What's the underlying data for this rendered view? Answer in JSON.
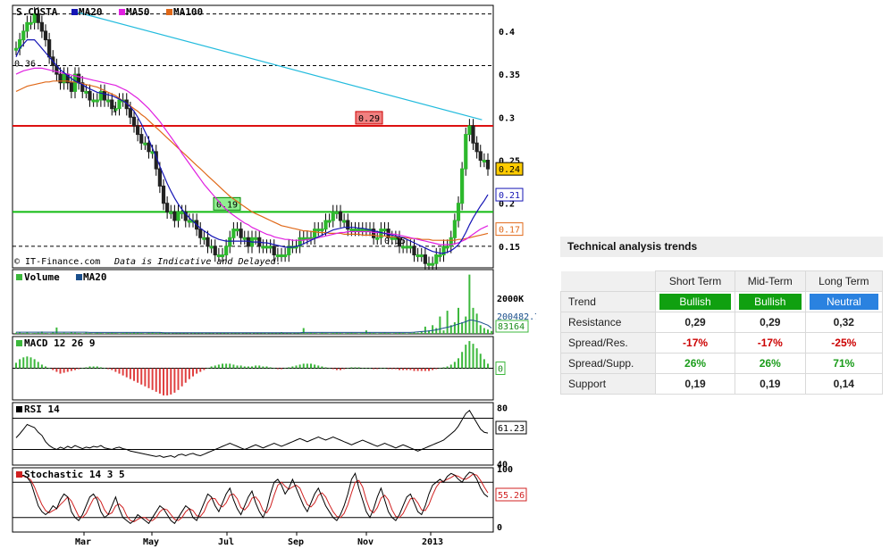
{
  "chart_data": {
    "type": "candlestick",
    "title": "S.COSTA",
    "legend": [
      "MA20",
      "MA50",
      "MA100"
    ],
    "colors": {
      "ma20": "#1515b5",
      "ma50": "#e020e0",
      "ma100": "#e06818",
      "resistance": "#dd1111",
      "support": "#11bb11",
      "trendline": "#22bbdd"
    },
    "copyright": "© IT-Finance.com",
    "disclaimer": "Data is Indicative and Delayed.",
    "y_ticks": [
      "0.4",
      "0.35",
      "0.3",
      "0.25",
      "0.2",
      "0.15"
    ],
    "ylim": [
      0.125,
      0.43
    ],
    "x_ticks": [
      "Mar",
      "May",
      "Jul",
      "Sep",
      "Nov",
      "2013"
    ],
    "price_labels": {
      "resistance": "0.29",
      "support": "0.19",
      "low_marker": "0.15",
      "high_marker": "0.36",
      "mid_marker": "1"
    },
    "right_labels": {
      "last": "0.24",
      "ma20": "0.21",
      "ma100": "0.17"
    },
    "close": [
      0.38,
      0.39,
      0.4,
      0.41,
      0.41,
      0.42,
      0.41,
      0.4,
      0.39,
      0.37,
      0.36,
      0.35,
      0.34,
      0.35,
      0.34,
      0.33,
      0.35,
      0.34,
      0.33,
      0.33,
      0.32,
      0.32,
      0.32,
      0.33,
      0.32,
      0.32,
      0.31,
      0.31,
      0.32,
      0.32,
      0.31,
      0.3,
      0.29,
      0.28,
      0.27,
      0.27,
      0.26,
      0.26,
      0.24,
      0.22,
      0.2,
      0.19,
      0.19,
      0.18,
      0.19,
      0.19,
      0.18,
      0.18,
      0.18,
      0.17,
      0.16,
      0.16,
      0.15,
      0.15,
      0.14,
      0.14,
      0.14,
      0.15,
      0.16,
      0.17,
      0.17,
      0.16,
      0.16,
      0.15,
      0.16,
      0.16,
      0.15,
      0.15,
      0.15,
      0.15,
      0.14,
      0.14,
      0.14,
      0.14,
      0.15,
      0.15,
      0.15,
      0.16,
      0.16,
      0.16,
      0.16,
      0.17,
      0.17,
      0.17,
      0.18,
      0.18,
      0.19,
      0.19,
      0.18,
      0.18,
      0.17,
      0.17,
      0.17,
      0.17,
      0.17,
      0.17,
      0.17,
      0.16,
      0.16,
      0.17,
      0.17,
      0.16,
      0.16,
      0.16,
      0.15,
      0.15,
      0.15,
      0.15,
      0.14,
      0.14,
      0.14,
      0.13,
      0.13,
      0.13,
      0.14,
      0.14,
      0.15,
      0.15,
      0.16,
      0.18,
      0.2,
      0.24,
      0.28,
      0.29,
      0.27,
      0.26,
      0.25,
      0.25,
      0.24
    ],
    "ma20": [
      0.37,
      0.38,
      0.385,
      0.39,
      0.39,
      0.39,
      0.385,
      0.38,
      0.375,
      0.37,
      0.365,
      0.36,
      0.355,
      0.352,
      0.348,
      0.345,
      0.342,
      0.34,
      0.338,
      0.335,
      0.333,
      0.331,
      0.329,
      0.328,
      0.327,
      0.326,
      0.325,
      0.323,
      0.321,
      0.319,
      0.316,
      0.312,
      0.307,
      0.3,
      0.292,
      0.283,
      0.274,
      0.264,
      0.254,
      0.243,
      0.233,
      0.223,
      0.214,
      0.206,
      0.199,
      0.193,
      0.188,
      0.183,
      0.179,
      0.175,
      0.171,
      0.168,
      0.165,
      0.162,
      0.16,
      0.158,
      0.157,
      0.156,
      0.156,
      0.156,
      0.156,
      0.156,
      0.156,
      0.156,
      0.155,
      0.155,
      0.155,
      0.154,
      0.154,
      0.153,
      0.152,
      0.151,
      0.15,
      0.149,
      0.149,
      0.149,
      0.15,
      0.151,
      0.153,
      0.155,
      0.157,
      0.159,
      0.161,
      0.163,
      0.165,
      0.167,
      0.169,
      0.17,
      0.171,
      0.172,
      0.172,
      0.172,
      0.172,
      0.171,
      0.171,
      0.17,
      0.169,
      0.168,
      0.167,
      0.166,
      0.165,
      0.164,
      0.163,
      0.162,
      0.161,
      0.16,
      0.158,
      0.156,
      0.154,
      0.152,
      0.15,
      0.148,
      0.146,
      0.144,
      0.143,
      0.142,
      0.142,
      0.143,
      0.145,
      0.148,
      0.152,
      0.158,
      0.166,
      0.175,
      0.183,
      0.19,
      0.197,
      0.203,
      0.21
    ],
    "ma50": [
      0.35,
      0.352,
      0.354,
      0.355,
      0.356,
      0.357,
      0.357,
      0.357,
      0.356,
      0.355,
      0.354,
      0.353,
      0.352,
      0.351,
      0.35,
      0.349,
      0.348,
      0.347,
      0.346,
      0.345,
      0.344,
      0.343,
      0.342,
      0.341,
      0.34,
      0.339,
      0.338,
      0.337,
      0.335,
      0.333,
      0.331,
      0.328,
      0.325,
      0.322,
      0.318,
      0.314,
      0.31,
      0.305,
      0.3,
      0.295,
      0.289,
      0.283,
      0.277,
      0.271,
      0.265,
      0.258,
      0.252,
      0.246,
      0.24,
      0.234,
      0.228,
      0.222,
      0.217,
      0.212,
      0.207,
      0.202,
      0.197,
      0.193,
      0.189,
      0.186,
      0.183,
      0.18,
      0.177,
      0.175,
      0.172,
      0.17,
      0.168,
      0.166,
      0.164,
      0.163,
      0.161,
      0.16,
      0.159,
      0.158,
      0.158,
      0.157,
      0.157,
      0.157,
      0.157,
      0.158,
      0.158,
      0.159,
      0.16,
      0.161,
      0.162,
      0.163,
      0.164,
      0.165,
      0.166,
      0.166,
      0.167,
      0.167,
      0.167,
      0.167,
      0.167,
      0.167,
      0.167,
      0.166,
      0.166,
      0.166,
      0.165,
      0.165,
      0.164,
      0.164,
      0.163,
      0.162,
      0.161,
      0.16,
      0.159,
      0.158,
      0.157,
      0.156,
      0.155,
      0.154,
      0.153,
      0.152,
      0.152,
      0.152,
      0.152,
      0.153,
      0.154,
      0.156,
      0.158,
      0.161,
      0.164,
      0.167,
      0.17,
      0.172,
      0.174
    ],
    "ma100": [
      0.33,
      0.332,
      0.334,
      0.336,
      0.337,
      0.338,
      0.339,
      0.34,
      0.341,
      0.341,
      0.342,
      0.342,
      0.342,
      0.342,
      0.342,
      0.341,
      0.341,
      0.34,
      0.339,
      0.338,
      0.337,
      0.336,
      0.335,
      0.333,
      0.331,
      0.329,
      0.327,
      0.325,
      0.322,
      0.319,
      0.316,
      0.313,
      0.31,
      0.307,
      0.303,
      0.3,
      0.296,
      0.292,
      0.288,
      0.284,
      0.28,
      0.276,
      0.272,
      0.268,
      0.264,
      0.26,
      0.256,
      0.252,
      0.248,
      0.244,
      0.24,
      0.236,
      0.232,
      0.228,
      0.224,
      0.22,
      0.216,
      0.212,
      0.208,
      0.205,
      0.202,
      0.199,
      0.196,
      0.193,
      0.19,
      0.188,
      0.186,
      0.184,
      0.182,
      0.18,
      0.178,
      0.176,
      0.174,
      0.173,
      0.172,
      0.171,
      0.17,
      0.169,
      0.168,
      0.168,
      0.167,
      0.167,
      0.166,
      0.166,
      0.166,
      0.165,
      0.165,
      0.165,
      0.165,
      0.164,
      0.164,
      0.164,
      0.164,
      0.164,
      0.163,
      0.163,
      0.163,
      0.163,
      0.162,
      0.162,
      0.162,
      0.161,
      0.161,
      0.161,
      0.16,
      0.16,
      0.16,
      0.159,
      0.159,
      0.159,
      0.158,
      0.158,
      0.158,
      0.157,
      0.157,
      0.157,
      0.157,
      0.157,
      0.157,
      0.157,
      0.158,
      0.158,
      0.159,
      0.16,
      0.161,
      0.162,
      0.163,
      0.164,
      0.165
    ],
    "volume": {
      "label": "Volume",
      "ma_label": "MA20",
      "axis_label": "2000K",
      "last_label": "83164",
      "ma_value_label": "200482.7",
      "ylim": [
        0,
        2100
      ],
      "values": [
        40,
        60,
        30,
        50,
        20,
        30,
        40,
        80,
        30,
        20,
        50,
        220,
        30,
        40,
        30,
        60,
        40,
        30,
        20,
        50,
        30,
        20,
        40,
        30,
        20,
        30,
        40,
        30,
        20,
        30,
        40,
        30,
        60,
        40,
        30,
        20,
        40,
        60,
        30,
        40,
        50,
        30,
        20,
        30,
        40,
        30,
        30,
        20,
        30,
        40,
        30,
        20,
        40,
        30,
        20,
        30,
        40,
        30,
        20,
        30,
        30,
        20,
        40,
        30,
        20,
        30,
        40,
        30,
        20,
        30,
        40,
        30,
        60,
        40,
        30,
        20,
        40,
        30,
        200,
        30,
        40,
        30,
        20,
        40,
        30,
        20,
        30,
        40,
        30,
        20,
        30,
        40,
        30,
        20,
        30,
        120,
        40,
        30,
        20,
        30,
        40,
        30,
        20,
        30,
        40,
        30,
        20,
        30,
        60,
        40,
        80,
        250,
        120,
        300,
        200,
        600,
        120,
        800,
        300,
        400,
        900,
        400,
        600,
        2050,
        900,
        700,
        300,
        200,
        150,
        100
      ],
      "ma": [
        60,
        60,
        60,
        60,
        60,
        60,
        60,
        60,
        60,
        60,
        60,
        60,
        60,
        60,
        60,
        60,
        60,
        60,
        60,
        60,
        50,
        50,
        50,
        50,
        50,
        50,
        50,
        50,
        50,
        50,
        50,
        50,
        50,
        50,
        50,
        50,
        50,
        50,
        50,
        50,
        40,
        40,
        40,
        40,
        40,
        40,
        40,
        40,
        40,
        40,
        40,
        40,
        40,
        40,
        40,
        40,
        40,
        40,
        40,
        40,
        40,
        40,
        40,
        40,
        40,
        40,
        40,
        40,
        40,
        40,
        40,
        40,
        40,
        40,
        40,
        40,
        40,
        40,
        50,
        50,
        50,
        50,
        50,
        50,
        50,
        50,
        50,
        50,
        50,
        50,
        50,
        50,
        50,
        50,
        50,
        50,
        50,
        50,
        50,
        50,
        50,
        50,
        50,
        50,
        50,
        50,
        50,
        50,
        60,
        70,
        80,
        90,
        100,
        120,
        140,
        170,
        200,
        230,
        260,
        300,
        340,
        380,
        420,
        480,
        470,
        440,
        400,
        350,
        300,
        200
      ]
    },
    "macd": {
      "label": "MACD 12 26 9",
      "value_label": "0",
      "ylim": [
        -0.035,
        0.035
      ],
      "values": [
        0.006,
        0.01,
        0.012,
        0.013,
        0.012,
        0.01,
        0.007,
        0.004,
        0.002,
        0.0,
        -0.002,
        -0.004,
        -0.006,
        -0.005,
        -0.004,
        -0.003,
        -0.002,
        -0.001,
        0.0,
        0.001,
        0.002,
        0.002,
        0.002,
        0.001,
        0.0,
        -0.001,
        -0.002,
        -0.004,
        -0.006,
        -0.008,
        -0.01,
        -0.012,
        -0.014,
        -0.016,
        -0.018,
        -0.02,
        -0.022,
        -0.024,
        -0.026,
        -0.028,
        -0.03,
        -0.03,
        -0.029,
        -0.027,
        -0.024,
        -0.02,
        -0.016,
        -0.012,
        -0.009,
        -0.006,
        -0.004,
        -0.002,
        0.0,
        0.002,
        0.003,
        0.004,
        0.005,
        0.005,
        0.005,
        0.004,
        0.003,
        0.003,
        0.002,
        0.002,
        0.002,
        0.003,
        0.003,
        0.002,
        0.002,
        0.001,
        0.0,
        -0.001,
        -0.001,
        0.0,
        0.001,
        0.002,
        0.003,
        0.004,
        0.005,
        0.005,
        0.005,
        0.004,
        0.003,
        0.002,
        0.001,
        0.0,
        -0.001,
        -0.002,
        -0.002,
        -0.001,
        0.0,
        0.001,
        0.001,
        0.001,
        0.0,
        0.0,
        0.0,
        -0.001,
        -0.001,
        0.0,
        0.0,
        -0.001,
        -0.001,
        -0.001,
        -0.002,
        -0.002,
        -0.002,
        -0.002,
        -0.003,
        -0.003,
        -0.003,
        -0.003,
        -0.003,
        -0.002,
        -0.001,
        0.0,
        0.001,
        0.002,
        0.004,
        0.007,
        0.011,
        0.018,
        0.026,
        0.03,
        0.027,
        0.022,
        0.016,
        0.01,
        0.005
      ]
    },
    "rsi": {
      "label": "RSI 14",
      "value_label": "61.23",
      "ylim": [
        20,
        100
      ],
      "levels": [
        80,
        40
      ],
      "tick_labels": [
        "80",
        "40"
      ],
      "values": [
        55,
        60,
        66,
        72,
        70,
        68,
        62,
        58,
        50,
        45,
        42,
        40,
        43,
        41,
        44,
        42,
        45,
        43,
        41,
        43,
        42,
        44,
        43,
        45,
        42,
        41,
        40,
        42,
        43,
        41,
        40,
        38,
        37,
        36,
        35,
        34,
        33,
        32,
        31,
        32,
        30,
        31,
        32,
        30,
        33,
        34,
        32,
        34,
        35,
        33,
        32,
        34,
        36,
        38,
        40,
        42,
        44,
        46,
        48,
        46,
        44,
        42,
        40,
        42,
        44,
        46,
        44,
        42,
        44,
        46,
        48,
        46,
        44,
        46,
        48,
        50,
        52,
        54,
        52,
        50,
        52,
        54,
        56,
        54,
        52,
        54,
        56,
        54,
        52,
        50,
        48,
        46,
        48,
        50,
        52,
        50,
        48,
        46,
        44,
        46,
        48,
        46,
        44,
        42,
        44,
        46,
        44,
        42,
        40,
        38,
        40,
        42,
        44,
        46,
        48,
        50,
        52,
        56,
        60,
        64,
        70,
        78,
        86,
        90,
        82,
        74,
        66,
        62,
        61
      ],
      "colors": {
        "line": "#000000"
      }
    },
    "stochastic": {
      "label": "Stochastic 14 3 5",
      "value_label": "55.26",
      "ylim": [
        0,
        100
      ],
      "levels": [
        80,
        20
      ],
      "tick_labels": [
        "100",
        "0"
      ],
      "k": [
        95,
        90,
        92,
        88,
        80,
        60,
        40,
        30,
        25,
        30,
        40,
        35,
        50,
        60,
        55,
        30,
        20,
        15,
        25,
        40,
        55,
        60,
        50,
        30,
        20,
        25,
        40,
        55,
        35,
        20,
        15,
        10,
        15,
        25,
        20,
        15,
        10,
        20,
        30,
        40,
        35,
        25,
        15,
        10,
        20,
        30,
        40,
        35,
        20,
        15,
        30,
        45,
        60,
        55,
        40,
        30,
        45,
        60,
        70,
        50,
        35,
        25,
        40,
        55,
        65,
        45,
        30,
        20,
        35,
        60,
        80,
        85,
        75,
        60,
        70,
        85,
        70,
        55,
        40,
        30,
        45,
        60,
        70,
        55,
        40,
        30,
        20,
        15,
        25,
        40,
        60,
        85,
        95,
        70,
        50,
        30,
        20,
        35,
        55,
        70,
        50,
        30,
        20,
        15,
        25,
        40,
        55,
        60,
        45,
        30,
        25,
        40,
        60,
        75,
        80,
        85,
        80,
        90,
        95,
        92,
        85,
        80,
        90,
        97,
        95,
        85,
        70,
        60,
        55
      ],
      "d": [
        90,
        90,
        90,
        88,
        84,
        72,
        56,
        42,
        32,
        28,
        32,
        35,
        42,
        48,
        55,
        48,
        35,
        22,
        20,
        27,
        40,
        52,
        55,
        47,
        33,
        25,
        28,
        40,
        43,
        37,
        23,
        15,
        13,
        17,
        20,
        20,
        15,
        15,
        20,
        30,
        35,
        33,
        25,
        17,
        15,
        20,
        30,
        35,
        32,
        23,
        22,
        30,
        45,
        53,
        52,
        42,
        38,
        45,
        58,
        60,
        52,
        37,
        33,
        40,
        53,
        55,
        47,
        32,
        28,
        38,
        58,
        75,
        80,
        73,
        68,
        72,
        75,
        70,
        55,
        42,
        38,
        45,
        58,
        62,
        55,
        42,
        30,
        22,
        20,
        27,
        42,
        62,
        80,
        83,
        72,
        50,
        33,
        28,
        37,
        53,
        58,
        50,
        33,
        22,
        20,
        27,
        40,
        52,
        53,
        45,
        33,
        32,
        42,
        58,
        72,
        80,
        82,
        85,
        88,
        92,
        90,
        86,
        85,
        89,
        94,
        92,
        83,
        72,
        62
      ]
    }
  },
  "panel": {
    "title": "Technical analysis trends",
    "columns": [
      "Short Term",
      "Mid-Term",
      "Long Term"
    ],
    "rows": {
      "trend": {
        "label": "Trend",
        "values": [
          "Bullish",
          "Bullish",
          "Neutral"
        ],
        "colors": [
          "#10a010",
          "#10a010",
          "#2a82e0"
        ]
      },
      "resistance": {
        "label": "Resistance",
        "values": [
          "0,29",
          "0,29",
          "0,32"
        ]
      },
      "spread_res": {
        "label": "Spread/Res.",
        "values": [
          "-17%",
          "-17%",
          "-25%"
        ]
      },
      "spread_supp": {
        "label": "Spread/Supp.",
        "values": [
          "26%",
          "26%",
          "71%"
        ]
      },
      "support": {
        "label": "Support",
        "values": [
          "0,19",
          "0,19",
          "0,14"
        ]
      }
    }
  }
}
